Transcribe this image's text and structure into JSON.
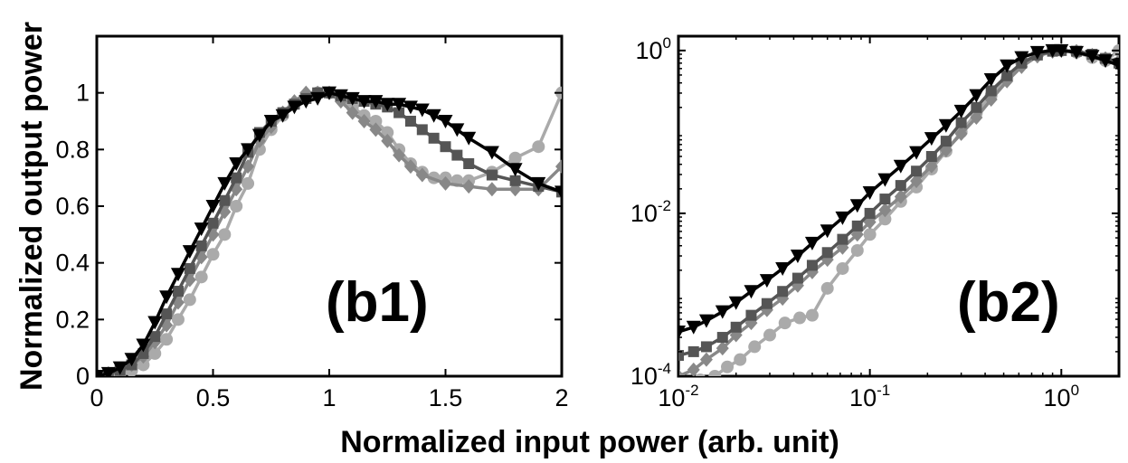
{
  "figure": {
    "ylabel": "Normalized output power",
    "xlabel": "Normalized input power (arb. unit)"
  },
  "chart_data": [
    {
      "type": "line",
      "panel_label": "(b1)",
      "x_scale": "linear",
      "y_scale": "linear",
      "xlim": [
        0,
        2
      ],
      "ylim": [
        0,
        1.2
      ],
      "x_ticks": [
        0,
        0.5,
        1,
        1.5,
        2
      ],
      "x_tick_labels": [
        "0",
        "0.5",
        "1",
        "1.5",
        "2"
      ],
      "y_ticks": [
        0,
        0.2,
        0.4,
        0.6,
        0.8,
        1
      ],
      "y_tick_labels": [
        "0",
        "0.2",
        "0.4",
        "0.6",
        "0.8",
        "1"
      ],
      "grid": false,
      "series": [
        {
          "color": "#aaaaaa",
          "marker": "circle",
          "x": [
            0,
            0.05,
            0.1,
            0.15,
            0.2,
            0.25,
            0.3,
            0.35,
            0.4,
            0.45,
            0.5,
            0.55,
            0.6,
            0.65,
            0.7,
            0.75,
            0.8,
            0.85,
            0.9,
            0.95,
            1.0,
            1.05,
            1.1,
            1.15,
            1.2,
            1.25,
            1.3,
            1.35,
            1.4,
            1.45,
            1.5,
            1.55,
            1.6,
            1.7,
            1.8,
            1.9,
            2.0
          ],
          "y": [
            0,
            0.005,
            0.01,
            0.02,
            0.04,
            0.08,
            0.13,
            0.2,
            0.27,
            0.35,
            0.43,
            0.5,
            0.6,
            0.68,
            0.8,
            0.87,
            0.92,
            0.96,
            0.99,
            1.0,
            1.0,
            0.98,
            0.95,
            0.92,
            0.9,
            0.86,
            0.8,
            0.75,
            0.72,
            0.7,
            0.7,
            0.69,
            0.69,
            0.72,
            0.77,
            0.81,
            1.0
          ]
        },
        {
          "color": "#888888",
          "marker": "diamond",
          "x": [
            0,
            0.05,
            0.1,
            0.15,
            0.2,
            0.25,
            0.3,
            0.35,
            0.4,
            0.45,
            0.5,
            0.55,
            0.6,
            0.65,
            0.7,
            0.75,
            0.8,
            0.85,
            0.9,
            0.95,
            1.0,
            1.05,
            1.1,
            1.15,
            1.2,
            1.25,
            1.3,
            1.35,
            1.4,
            1.5,
            1.6,
            1.7,
            1.8,
            1.9,
            2.0
          ],
          "y": [
            0,
            0.01,
            0.02,
            0.04,
            0.07,
            0.12,
            0.18,
            0.26,
            0.34,
            0.42,
            0.5,
            0.58,
            0.66,
            0.74,
            0.83,
            0.88,
            0.93,
            0.97,
            1.0,
            1.0,
            1.0,
            0.97,
            0.93,
            0.9,
            0.87,
            0.83,
            0.78,
            0.74,
            0.71,
            0.68,
            0.67,
            0.66,
            0.66,
            0.66,
            0.74
          ]
        },
        {
          "color": "#555555",
          "marker": "square",
          "x": [
            0,
            0.05,
            0.1,
            0.15,
            0.2,
            0.25,
            0.3,
            0.35,
            0.4,
            0.45,
            0.5,
            0.55,
            0.6,
            0.65,
            0.7,
            0.75,
            0.8,
            0.85,
            0.9,
            0.95,
            1.0,
            1.05,
            1.1,
            1.15,
            1.2,
            1.25,
            1.3,
            1.35,
            1.4,
            1.45,
            1.5,
            1.55,
            1.6,
            1.7,
            1.8,
            1.9,
            2.0
          ],
          "y": [
            0,
            0.01,
            0.02,
            0.04,
            0.08,
            0.14,
            0.22,
            0.3,
            0.38,
            0.46,
            0.54,
            0.62,
            0.7,
            0.79,
            0.86,
            0.9,
            0.93,
            0.96,
            0.98,
            1.0,
            1.0,
            0.99,
            0.98,
            0.97,
            0.96,
            0.95,
            0.93,
            0.9,
            0.87,
            0.84,
            0.81,
            0.78,
            0.75,
            0.71,
            0.69,
            0.67,
            0.65
          ]
        },
        {
          "color": "#000000",
          "marker": "triangle-down",
          "x": [
            0,
            0.05,
            0.1,
            0.15,
            0.2,
            0.25,
            0.3,
            0.35,
            0.4,
            0.45,
            0.5,
            0.55,
            0.6,
            0.65,
            0.7,
            0.75,
            0.8,
            0.85,
            0.9,
            0.95,
            1.0,
            1.05,
            1.1,
            1.15,
            1.2,
            1.25,
            1.3,
            1.35,
            1.4,
            1.45,
            1.5,
            1.55,
            1.6,
            1.7,
            1.8,
            1.9,
            2.0
          ],
          "y": [
            0,
            0.01,
            0.03,
            0.06,
            0.11,
            0.19,
            0.28,
            0.36,
            0.44,
            0.52,
            0.6,
            0.68,
            0.75,
            0.8,
            0.85,
            0.9,
            0.92,
            0.95,
            0.97,
            0.98,
            1.0,
            0.99,
            0.98,
            0.97,
            0.97,
            0.96,
            0.96,
            0.95,
            0.94,
            0.92,
            0.9,
            0.87,
            0.84,
            0.79,
            0.73,
            0.68,
            0.65
          ]
        }
      ]
    },
    {
      "type": "line",
      "panel_label": "(b2)",
      "x_scale": "log",
      "y_scale": "log",
      "xlim": [
        0.01,
        2
      ],
      "ylim": [
        0.0001,
        1.5
      ],
      "x_ticks": [
        0.01,
        0.1,
        1
      ],
      "x_tick_labels": [
        [
          "10",
          "-2"
        ],
        [
          "10",
          "-1"
        ],
        [
          "10",
          "0"
        ]
      ],
      "y_ticks": [
        0.0001,
        0.01,
        1
      ],
      "y_tick_labels": [
        [
          "10",
          "-4"
        ],
        [
          "10",
          "-2"
        ],
        [
          "10",
          "0"
        ]
      ],
      "grid": false,
      "series": [
        {
          "color": "#aaaaaa",
          "marker": "circle",
          "x": [
            0.013,
            0.0155,
            0.018,
            0.021,
            0.025,
            0.03,
            0.036,
            0.043,
            0.05,
            0.06,
            0.072,
            0.086,
            0.1,
            0.12,
            0.145,
            0.175,
            0.21,
            0.25,
            0.3,
            0.36,
            0.43,
            0.52,
            0.62,
            0.75,
            0.9,
            1.0,
            1.2,
            1.45,
            1.7,
            2.0
          ],
          "y": [
            9e-05,
            0.0001,
            0.00013,
            0.00016,
            0.00023,
            0.00032,
            0.00045,
            0.00052,
            0.00056,
            0.0012,
            0.0021,
            0.0035,
            0.0055,
            0.0085,
            0.014,
            0.021,
            0.035,
            0.058,
            0.1,
            0.17,
            0.28,
            0.45,
            0.7,
            0.9,
            1.0,
            1.0,
            0.95,
            0.82,
            0.75,
            1.0
          ]
        },
        {
          "color": "#888888",
          "marker": "diamond",
          "x": [
            0.01,
            0.012,
            0.014,
            0.017,
            0.02,
            0.024,
            0.029,
            0.035,
            0.042,
            0.05,
            0.06,
            0.072,
            0.086,
            0.1,
            0.12,
            0.145,
            0.175,
            0.21,
            0.25,
            0.3,
            0.36,
            0.43,
            0.52,
            0.62,
            0.75,
            0.9,
            1.0,
            1.2,
            1.45,
            1.7,
            2.0
          ],
          "y": [
            0.0001,
            0.00012,
            0.00016,
            0.00022,
            0.00032,
            0.00045,
            0.00065,
            0.0009,
            0.0013,
            0.0019,
            0.0027,
            0.0038,
            0.0055,
            0.0078,
            0.011,
            0.016,
            0.025,
            0.038,
            0.06,
            0.095,
            0.15,
            0.25,
            0.42,
            0.63,
            0.85,
            0.97,
            1.0,
            0.98,
            0.88,
            0.8,
            0.74
          ]
        },
        {
          "color": "#555555",
          "marker": "square",
          "x": [
            0.01,
            0.012,
            0.014,
            0.017,
            0.02,
            0.024,
            0.029,
            0.035,
            0.042,
            0.05,
            0.06,
            0.072,
            0.086,
            0.1,
            0.12,
            0.145,
            0.175,
            0.21,
            0.25,
            0.3,
            0.36,
            0.43,
            0.52,
            0.62,
            0.75,
            0.9,
            1.0,
            1.2,
            1.45,
            1.7,
            2.0
          ],
          "y": [
            0.00018,
            0.0002,
            0.00023,
            0.0003,
            0.0004,
            0.00056,
            0.00078,
            0.0011,
            0.0016,
            0.0023,
            0.0033,
            0.0048,
            0.007,
            0.01,
            0.015,
            0.022,
            0.033,
            0.05,
            0.077,
            0.13,
            0.2,
            0.32,
            0.49,
            0.7,
            0.88,
            0.98,
            1.0,
            0.98,
            0.9,
            0.8,
            0.7
          ]
        },
        {
          "color": "#000000",
          "marker": "triangle-down",
          "x": [
            0.01,
            0.012,
            0.014,
            0.017,
            0.02,
            0.024,
            0.029,
            0.035,
            0.042,
            0.05,
            0.06,
            0.072,
            0.086,
            0.1,
            0.12,
            0.145,
            0.175,
            0.21,
            0.25,
            0.3,
            0.36,
            0.43,
            0.52,
            0.62,
            0.75,
            0.9,
            1.0,
            1.2,
            1.45,
            1.7,
            2.0
          ],
          "y": [
            0.00035,
            0.0004,
            0.00048,
            0.00062,
            0.0008,
            0.0011,
            0.0015,
            0.0021,
            0.003,
            0.0043,
            0.0061,
            0.0088,
            0.0125,
            0.018,
            0.026,
            0.038,
            0.056,
            0.083,
            0.12,
            0.18,
            0.28,
            0.44,
            0.65,
            0.82,
            0.95,
            1.0,
            1.0,
            0.95,
            0.85,
            0.75,
            0.66
          ]
        }
      ]
    }
  ]
}
